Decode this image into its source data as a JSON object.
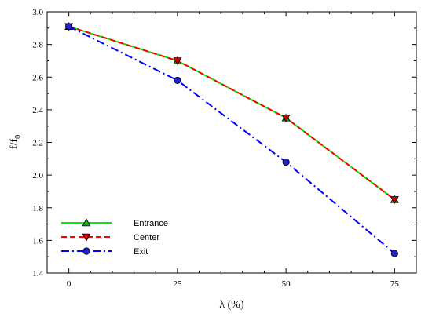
{
  "chart_data": {
    "type": "line",
    "x": [
      0,
      25,
      50,
      75
    ],
    "xlabel": "λ (%)",
    "ylabel_main": "f/f",
    "ylabel_sub": "0",
    "xlim": [
      -5,
      80
    ],
    "ylim": [
      1.4,
      3.0
    ],
    "xticks": [
      "0",
      "25",
      "50",
      "75"
    ],
    "yticks": [
      "1.4",
      "1.6",
      "1.8",
      "2.0",
      "2.2",
      "2.4",
      "2.6",
      "2.8",
      "3.0"
    ],
    "grid": false,
    "legend_position": "bottom-left",
    "series": [
      {
        "name": "Entrance",
        "values": [
          2.91,
          2.7,
          2.35,
          1.85
        ],
        "color": "#00ee00",
        "line_style": "solid",
        "marker": "triangle-up",
        "marker_fill": "#22aa22"
      },
      {
        "name": "Center",
        "values": [
          2.91,
          2.7,
          2.35,
          1.85
        ],
        "color": "#ff0000",
        "line_style": "dashed",
        "marker": "triangle-down",
        "marker_fill": "#cc0000"
      },
      {
        "name": "Exit",
        "values": [
          2.91,
          2.58,
          2.08,
          1.52
        ],
        "color": "#0000ff",
        "line_style": "dash-dot",
        "marker": "circle",
        "marker_fill": "#2222cc"
      }
    ]
  }
}
